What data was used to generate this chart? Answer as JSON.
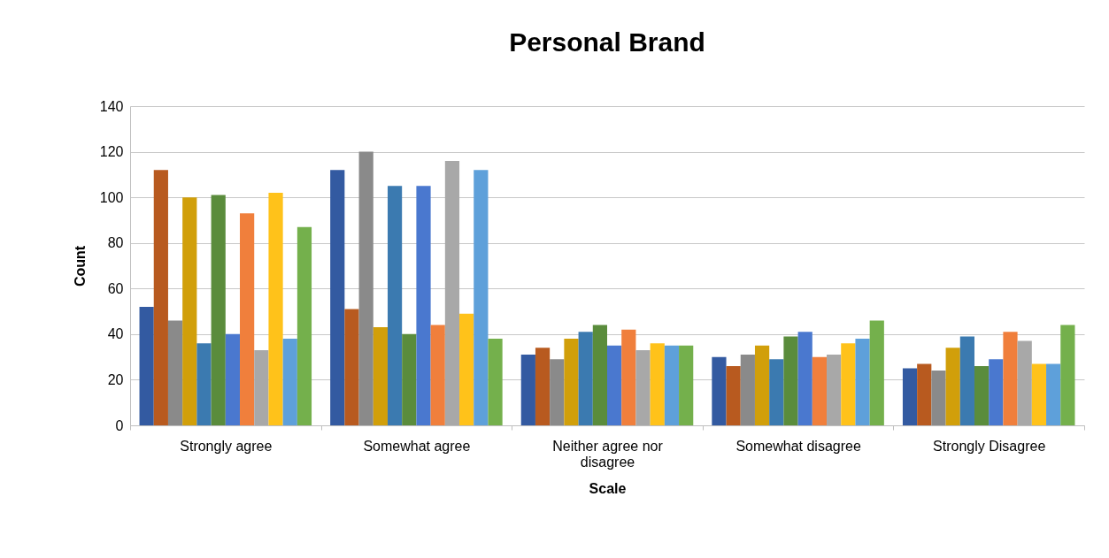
{
  "chart_data": {
    "type": "bar",
    "title": "Personal Brand",
    "xlabel": "Scale",
    "ylabel": "Count",
    "categories": [
      "Strongly agree",
      "Somewhat agree",
      "Neither agree nor disagree",
      "Somewhat disagree",
      "Strongly Disagree"
    ],
    "series": [
      {
        "color": "#335aa1",
        "values": [
          52,
          112,
          31,
          30,
          25
        ]
      },
      {
        "color": "#b85a1f",
        "values": [
          112,
          51,
          34,
          26,
          27
        ]
      },
      {
        "color": "#8a8a8a",
        "values": [
          46,
          120,
          29,
          31,
          24
        ]
      },
      {
        "color": "#d19f0a",
        "values": [
          100,
          43,
          38,
          35,
          34
        ]
      },
      {
        "color": "#3b7ab0",
        "values": [
          36,
          105,
          41,
          29,
          39
        ]
      },
      {
        "color": "#5a8c3c",
        "values": [
          101,
          40,
          44,
          39,
          26
        ]
      },
      {
        "color": "#4a78cf",
        "values": [
          40,
          105,
          35,
          41,
          29
        ]
      },
      {
        "color": "#f07f3c",
        "values": [
          93,
          44,
          42,
          30,
          41
        ]
      },
      {
        "color": "#a8a8a8",
        "values": [
          33,
          116,
          33,
          31,
          37
        ]
      },
      {
        "color": "#ffc21a",
        "values": [
          102,
          49,
          36,
          36,
          27
        ]
      },
      {
        "color": "#5ea0da",
        "values": [
          38,
          112,
          35,
          38,
          27
        ]
      },
      {
        "color": "#74b04c",
        "values": [
          87,
          38,
          35,
          46,
          44
        ]
      }
    ],
    "ylim": [
      0,
      140
    ],
    "yticks": [
      0,
      20,
      40,
      60,
      80,
      100,
      120,
      140
    ],
    "grid": "y",
    "legend": false
  }
}
